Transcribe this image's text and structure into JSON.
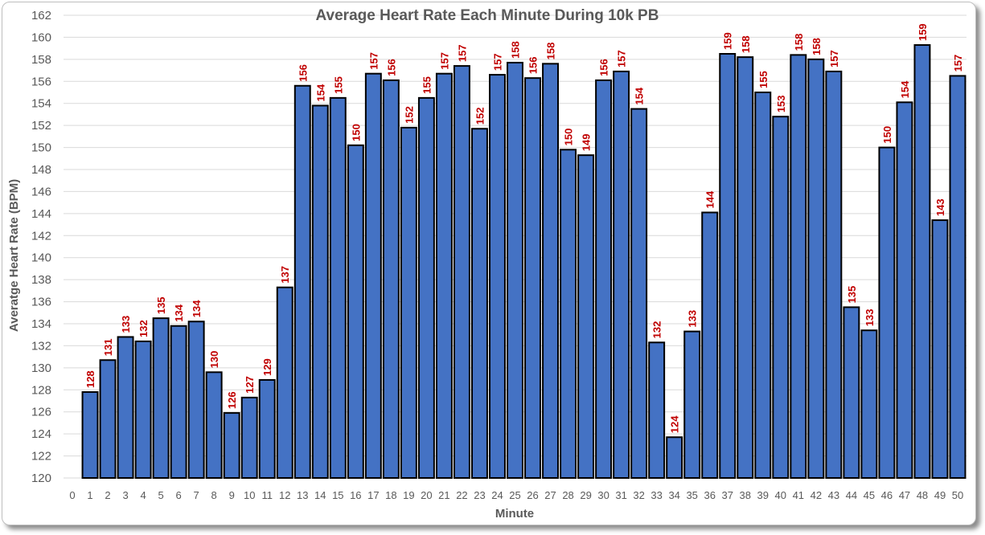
{
  "chart_data": {
    "type": "bar",
    "title": "Average Heart Rate Each Minute During 10k PB",
    "xlabel": "Minute",
    "ylabel": "Averatge Heart Rate (BPM)",
    "ylim": [
      120,
      162
    ],
    "y_ticks": [
      120,
      122,
      124,
      126,
      128,
      130,
      132,
      134,
      136,
      138,
      140,
      142,
      144,
      146,
      148,
      150,
      152,
      154,
      156,
      158,
      160,
      162
    ],
    "categories": [
      "0",
      "1",
      "2",
      "3",
      "4",
      "5",
      "6",
      "7",
      "8",
      "9",
      "10",
      "11",
      "12",
      "13",
      "14",
      "15",
      "16",
      "17",
      "18",
      "19",
      "20",
      "21",
      "22",
      "23",
      "24",
      "25",
      "26",
      "27",
      "28",
      "29",
      "30",
      "31",
      "32",
      "33",
      "34",
      "35",
      "36",
      "37",
      "38",
      "39",
      "40",
      "41",
      "42",
      "43",
      "44",
      "45",
      "46",
      "47",
      "48",
      "49",
      "50"
    ],
    "values": [
      null,
      127.8,
      130.7,
      132.8,
      132.4,
      134.5,
      133.8,
      134.2,
      129.6,
      125.9,
      127.3,
      128.9,
      137.3,
      155.6,
      153.8,
      154.5,
      150.2,
      156.7,
      156.1,
      151.8,
      154.5,
      156.7,
      157.4,
      151.7,
      156.6,
      157.7,
      156.3,
      157.6,
      149.8,
      149.3,
      156.1,
      156.9,
      153.5,
      132.3,
      123.7,
      133.3,
      144.1,
      158.5,
      158.2,
      155.0,
      152.8,
      158.4,
      158.0,
      156.9,
      135.5,
      133.4,
      150.0,
      154.1,
      159.3,
      143.4,
      156.5
    ],
    "data_labels": [
      "",
      "128",
      "131",
      "133",
      "132",
      "135",
      "134",
      "134",
      "130",
      "126",
      "127",
      "129",
      "137",
      "156",
      "154",
      "155",
      "150",
      "157",
      "156",
      "152",
      "155",
      "157",
      "157",
      "152",
      "157",
      "158",
      "156",
      "158",
      "150",
      "149",
      "156",
      "157",
      "154",
      "132",
      "124",
      "133",
      "144",
      "159",
      "158",
      "155",
      "153",
      "158",
      "158",
      "157",
      "135",
      "133",
      "150",
      "154",
      "159",
      "143",
      "157"
    ],
    "grid": true,
    "legend": "none",
    "colors": {
      "bar": "#4472c4",
      "bar_border": "#000000",
      "data_label": "#c00000",
      "text": "#595959",
      "grid": "#d9d9d9"
    }
  }
}
